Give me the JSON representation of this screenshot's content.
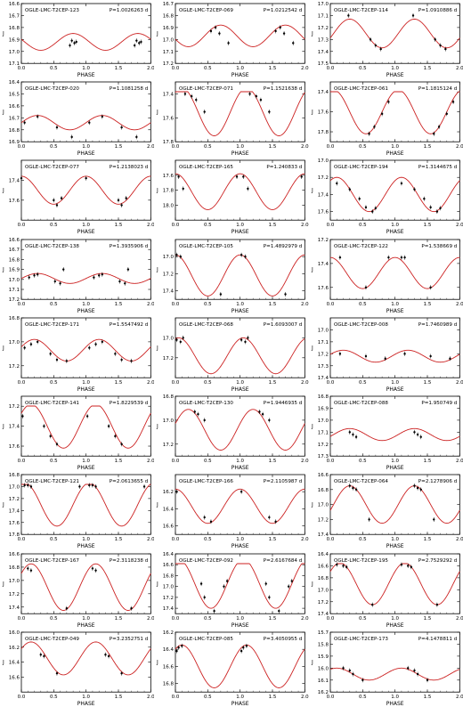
{
  "figure": {
    "xlabel": "PHASE",
    "ylabel": "J",
    "curve_color": "#cc2222",
    "point_color": "#000000"
  },
  "chart_data": [
    {
      "type": "line",
      "title": "OGLE-LMC-T2CEP-123",
      "period": "P=1.0026263 d",
      "ylim": [
        17.1,
        16.6
      ],
      "yticks": [
        "16.6",
        "16.7",
        "16.8",
        "16.9",
        "17.0",
        "17.1"
      ],
      "xticks": [
        "0.0",
        "0.5",
        "1.0",
        "1.5",
        "2.0"
      ],
      "x": [
        0.75,
        0.78,
        0.82,
        0.85,
        1.75,
        1.78,
        1.82,
        1.85
      ],
      "y": [
        16.95,
        16.91,
        16.93,
        16.92,
        16.95,
        16.91,
        16.93,
        16.92
      ],
      "amp": 0.07,
      "mean": 16.92,
      "phase0": 0.8
    },
    {
      "type": "line",
      "title": "OGLE-LMC-T2CEP-069",
      "period": "P=1.0212542 d",
      "ylim": [
        17.2,
        16.7
      ],
      "yticks": [
        "16.7",
        "16.8",
        "16.9",
        "17.0",
        "17.1",
        "17.2"
      ],
      "xticks": [
        "0.0",
        "0.5",
        "1.0",
        "1.5",
        "2.0"
      ],
      "x": [
        0.55,
        0.62,
        0.68,
        0.82,
        1.55,
        1.62,
        1.68,
        1.82
      ],
      "y": [
        16.93,
        16.9,
        16.95,
        17.03,
        16.93,
        16.9,
        16.95,
        17.03
      ],
      "amp": 0.09,
      "mean": 16.97,
      "phase0": 0.7
    },
    {
      "type": "line",
      "title": "OGLE-LMC-T2CEP-114",
      "period": "P=1.0910886 d",
      "ylim": [
        17.5,
        17.0
      ],
      "yticks": [
        "17.0",
        "17.1",
        "17.2",
        "17.3",
        "17.4",
        "17.5"
      ],
      "xticks": [
        "0.0",
        "0.5",
        "1.0",
        "1.5",
        "2.0"
      ],
      "x": [
        0.28,
        0.62,
        0.7,
        0.78,
        1.28,
        1.62,
        1.7,
        1.78
      ],
      "y": [
        17.1,
        17.3,
        17.35,
        17.38,
        17.1,
        17.3,
        17.35,
        17.38
      ],
      "amp": 0.12,
      "mean": 17.25,
      "phase0": 0.3
    },
    {
      "type": "line",
      "title": "OGLE-LMC-T2CEP-020",
      "period": "P=1.1081258 d",
      "ylim": [
        16.9,
        16.4
      ],
      "yticks": [
        "16.4",
        "16.5",
        "16.6",
        "16.7",
        "16.8",
        "16.9"
      ],
      "xticks": [
        "0.0",
        "0.5",
        "1.0",
        "1.5",
        "2.0"
      ],
      "x": [
        0.05,
        0.25,
        0.55,
        0.78,
        1.05,
        1.25,
        1.55,
        1.78
      ],
      "y": [
        16.74,
        16.69,
        16.78,
        16.86,
        16.74,
        16.69,
        16.78,
        16.86
      ],
      "amp": 0.06,
      "mean": 16.74,
      "phase0": 0.25
    },
    {
      "type": "line",
      "title": "OGLE-LMC-T2CEP-071",
      "period": "P=1.1521638 d",
      "ylim": [
        17.8,
        17.3
      ],
      "yticks": [
        "17.4",
        "17.6",
        "17.8"
      ],
      "xticks": [
        "0.0",
        "0.5",
        "1.0",
        "1.5",
        "2.0"
      ],
      "x": [
        0.15,
        0.25,
        0.32,
        0.45,
        1.15,
        1.25,
        1.32,
        1.45
      ],
      "y": [
        17.4,
        17.42,
        17.45,
        17.55,
        17.4,
        17.42,
        17.45,
        17.55
      ],
      "amp": 0.2,
      "mean": 17.55,
      "phase0": 0.1
    },
    {
      "type": "line",
      "title": "OGLE-LMC-T2CEP-061",
      "period": "P=1.1815124 d",
      "ylim": [
        17.9,
        17.3
      ],
      "yticks": [
        "17.4",
        "17.6",
        "17.8"
      ],
      "xticks": [
        "0.0",
        "0.5",
        "1.0",
        "1.5",
        "2.0"
      ],
      "x": [
        0.6,
        0.68,
        0.8,
        0.9,
        1.6,
        1.68,
        1.8,
        1.9
      ],
      "y": [
        17.82,
        17.75,
        17.62,
        17.5,
        17.82,
        17.75,
        17.62,
        17.5
      ],
      "amp": 0.22,
      "mean": 17.6,
      "phase0": 0.05
    },
    {
      "type": "line",
      "title": "OGLE-LMC-T2CEP-077",
      "period": "P=1.2138023 d",
      "ylim": [
        17.8,
        17.2
      ],
      "yticks": [
        "17.4",
        "17.6"
      ],
      "xticks": [
        "0.0",
        "0.5",
        "1.0",
        "1.5",
        "2.0"
      ],
      "x": [
        0.0,
        0.5,
        0.55,
        0.62,
        1.0,
        1.5,
        1.55,
        1.62
      ],
      "y": [
        17.38,
        17.6,
        17.65,
        17.58,
        17.38,
        17.6,
        17.65,
        17.58
      ],
      "amp": 0.14,
      "mean": 17.5,
      "phase0": 0.0
    },
    {
      "type": "line",
      "title": "OGLE-LMC-T2CEP-165",
      "period": "P=1.240833 d",
      "ylim": [
        18.2,
        17.4
      ],
      "yticks": [
        "17.6",
        "17.8",
        "18.0"
      ],
      "xticks": [
        "0.0",
        "0.5",
        "1.0",
        "1.5",
        "2.0"
      ],
      "x": [
        0.05,
        0.12,
        0.95,
        1.05,
        1.12,
        1.95
      ],
      "y": [
        17.62,
        17.78,
        17.62,
        17.62,
        17.78,
        17.62
      ],
      "amp": 0.24,
      "mean": 17.82,
      "phase0": 0.0
    },
    {
      "type": "line",
      "title": "OGLE-LMC-T2CEP-194",
      "period": "P=1.3144675 d",
      "ylim": [
        17.7,
        17.0
      ],
      "yticks": [
        "17.0",
        "17.2",
        "17.4",
        "17.6"
      ],
      "xticks": [
        "0.0",
        "0.5",
        "1.0",
        "1.5",
        "2.0"
      ],
      "x": [
        0.1,
        0.3,
        0.45,
        0.55,
        0.65,
        0.7,
        1.1,
        1.3,
        1.45,
        1.55,
        1.65,
        1.7
      ],
      "y": [
        17.27,
        17.34,
        17.45,
        17.55,
        17.6,
        17.56,
        17.27,
        17.34,
        17.45,
        17.55,
        17.6,
        17.56
      ],
      "amp": 0.2,
      "mean": 17.4,
      "phase0": 0.1
    },
    {
      "type": "line",
      "title": "OGLE-LMC-T2CEP-138",
      "period": "P=1.3935906 d",
      "ylim": [
        17.2,
        16.6
      ],
      "yticks": [
        "16.6",
        "16.7",
        "16.8",
        "16.9",
        "17.0",
        "17.1",
        "17.2"
      ],
      "xticks": [
        "0.0",
        "0.5",
        "1.0",
        "1.5",
        "2.0"
      ],
      "x": [
        0.12,
        0.2,
        0.25,
        0.52,
        0.6,
        0.65,
        1.12,
        1.2,
        1.25,
        1.52,
        1.6,
        1.65
      ],
      "y": [
        16.98,
        16.96,
        16.95,
        17.02,
        17.04,
        16.9,
        16.98,
        16.96,
        16.95,
        17.02,
        17.04,
        16.9
      ],
      "amp": 0.05,
      "mean": 16.99,
      "phase0": 0.25
    },
    {
      "type": "line",
      "title": "OGLE-LMC-T2CEP-105",
      "period": "P=1.4892979 d",
      "ylim": [
        17.5,
        16.8
      ],
      "yticks": [
        "17.0",
        "17.2",
        "17.4"
      ],
      "xticks": [
        "0.0",
        "0.5",
        "1.0",
        "1.5",
        "2.0"
      ],
      "x": [
        0.02,
        0.08,
        0.7,
        1.02,
        1.08,
        1.7
      ],
      "y": [
        16.98,
        17.0,
        17.44,
        16.98,
        17.0,
        17.44
      ],
      "amp": 0.24,
      "mean": 17.22,
      "phase0": 0.0
    },
    {
      "type": "line",
      "title": "OGLE-LMC-T2CEP-122",
      "period": "P=1.538669 d",
      "ylim": [
        17.7,
        17.2
      ],
      "yticks": [
        "17.2",
        "17.4",
        "17.6"
      ],
      "xticks": [
        "0.0",
        "0.5",
        "1.0",
        "1.5",
        "2.0"
      ],
      "x": [
        0.15,
        0.55,
        0.9,
        1.1,
        1.15,
        1.55
      ],
      "y": [
        17.35,
        17.6,
        17.35,
        17.35,
        17.35,
        17.6
      ],
      "amp": 0.13,
      "mean": 17.48,
      "phase0": 0.0
    },
    {
      "type": "line",
      "title": "OGLE-LMC-T2CEP-171",
      "period": "P=1.5547492 d",
      "ylim": [
        17.3,
        16.8
      ],
      "yticks": [
        "16.8",
        "17.0",
        "17.2"
      ],
      "xticks": [
        "0.0",
        "0.5",
        "1.0",
        "1.5",
        "2.0"
      ],
      "x": [
        0.05,
        0.15,
        0.25,
        0.45,
        0.55,
        0.7,
        1.05,
        1.15,
        1.25,
        1.45,
        1.55,
        1.7
      ],
      "y": [
        17.05,
        17.02,
        17.0,
        17.1,
        17.15,
        17.16,
        17.05,
        17.02,
        17.0,
        17.1,
        17.15,
        17.16
      ],
      "amp": 0.09,
      "mean": 17.07,
      "phase0": 0.2
    },
    {
      "type": "line",
      "title": "OGLE-LMC-T2CEP-068",
      "period": "P=1.6093007 d",
      "ylim": [
        17.4,
        16.8
      ],
      "yticks": [
        "17.0",
        "17.2"
      ],
      "xticks": [
        "0.0",
        "0.5",
        "1.0",
        "1.5",
        "2.0"
      ],
      "x": [
        0.02,
        0.08,
        0.12,
        1.02,
        1.08,
        1.12
      ],
      "y": [
        17.02,
        17.04,
        17.0,
        17.02,
        17.04,
        17.0
      ],
      "amp": 0.18,
      "mean": 17.18,
      "phase0": 0.05
    },
    {
      "type": "line",
      "title": "OGLE-LMC-T2CEP-008",
      "period": "P=1.7460989 d",
      "ylim": [
        17.4,
        16.9
      ],
      "yticks": [
        "17.0",
        "17.1",
        "17.2",
        "17.3",
        "17.4"
      ],
      "xticks": [
        "0.0",
        "0.5",
        "1.0",
        "1.5",
        "2.0"
      ],
      "x": [
        0.15,
        0.55,
        0.85,
        1.15,
        1.55,
        1.85
      ],
      "y": [
        17.2,
        17.22,
        17.24,
        17.2,
        17.22,
        17.24
      ],
      "amp": 0.05,
      "mean": 17.22,
      "phase0": 0.2
    },
    {
      "type": "line",
      "title": "OGLE-LMC-T2CEP-141",
      "period": "P=1.8229539 d",
      "ylim": [
        17.7,
        17.1
      ],
      "yticks": [
        "17.2",
        "17.4",
        "17.6"
      ],
      "xticks": [
        "0.0",
        "0.5",
        "1.0",
        "1.5",
        "2.0"
      ],
      "x": [
        0.02,
        0.35,
        0.45,
        0.55,
        1.02,
        1.35,
        1.45,
        1.55
      ],
      "y": [
        17.3,
        17.4,
        17.5,
        17.58,
        17.3,
        17.4,
        17.5,
        17.58
      ],
      "amp": 0.22,
      "mean": 17.4,
      "phase0": 0.15
    },
    {
      "type": "line",
      "title": "OGLE-LMC-T2CEP-130",
      "period": "P=1.9446935 d",
      "ylim": [
        17.3,
        16.8
      ],
      "yticks": [
        "16.8",
        "17.0",
        "17.2"
      ],
      "xticks": [
        "0.0",
        "0.5",
        "1.0",
        "1.5",
        "2.0"
      ],
      "x": [
        0.3,
        0.35,
        0.45,
        1.3,
        1.35,
        1.45
      ],
      "y": [
        16.93,
        16.95,
        17.0,
        16.93,
        16.95,
        17.0
      ],
      "amp": 0.17,
      "mean": 17.08,
      "phase0": 0.2
    },
    {
      "type": "line",
      "title": "OGLE-LMC-T2CEP-088",
      "period": "P=1.950749 d",
      "ylim": [
        17.3,
        16.8
      ],
      "yticks": [
        "16.8",
        "16.9",
        "17.0",
        "17.1",
        "17.2",
        "17.3"
      ],
      "xticks": [
        "0.0",
        "0.5",
        "1.0",
        "1.5",
        "2.0"
      ],
      "x": [
        0.3,
        0.35,
        0.4,
        1.3,
        1.35,
        1.4
      ],
      "y": [
        17.1,
        17.12,
        17.14,
        17.1,
        17.12,
        17.14
      ],
      "amp": 0.05,
      "mean": 17.12,
      "phase0": 0.3
    },
    {
      "type": "line",
      "title": "OGLE-LMC-T2CEP-121",
      "period": "P=2.0613655 d",
      "ylim": [
        17.8,
        16.8
      ],
      "yticks": [
        "16.8",
        "17.0",
        "17.2",
        "17.4",
        "17.6",
        "17.8"
      ],
      "xticks": [
        "0.0",
        "0.5",
        "1.0",
        "1.5",
        "2.0"
      ],
      "x": [
        0.05,
        0.1,
        0.15,
        0.9,
        1.05,
        1.1,
        1.15,
        1.9
      ],
      "y": [
        16.95,
        16.97,
        17.0,
        17.0,
        16.95,
        16.97,
        17.0,
        17.0
      ],
      "amp": 0.36,
      "mean": 17.3,
      "phase0": 0.05
    },
    {
      "type": "line",
      "title": "OGLE-LMC-T2CEP-166",
      "period": "P=2.1105987 d",
      "ylim": [
        16.7,
        16.0
      ],
      "yticks": [
        "16.2",
        "16.4",
        "16.6"
      ],
      "xticks": [
        "0.0",
        "0.5",
        "1.0",
        "1.5",
        "2.0"
      ],
      "x": [
        0.02,
        0.45,
        0.55,
        1.02,
        1.45,
        1.55
      ],
      "y": [
        16.2,
        16.5,
        16.55,
        16.2,
        16.5,
        16.55
      ],
      "amp": 0.2,
      "mean": 16.37,
      "phase0": 0.0
    },
    {
      "type": "line",
      "title": "OGLE-LMC-T2CEP-064",
      "period": "P=2.1278906 d",
      "ylim": [
        17.4,
        16.6
      ],
      "yticks": [
        "16.6",
        "16.8",
        "17.0",
        "17.2",
        "17.4"
      ],
      "xticks": [
        "0.0",
        "0.5",
        "1.0",
        "1.5",
        "2.0"
      ],
      "x": [
        0.3,
        0.35,
        0.4,
        0.6,
        1.3,
        1.35,
        1.4,
        1.6
      ],
      "y": [
        16.75,
        16.78,
        16.8,
        17.2,
        16.75,
        16.78,
        16.8,
        17.2
      ],
      "amp": 0.25,
      "mean": 17.0,
      "phase0": 0.3
    },
    {
      "type": "line",
      "title": "OGLE-LMC-T2CEP-167",
      "period": "P=2.3118238 d",
      "ylim": [
        17.5,
        16.6
      ],
      "yticks": [
        "16.6",
        "16.8",
        "17.0",
        "17.2",
        "17.4"
      ],
      "xticks": [
        "0.0",
        "0.5",
        "1.0",
        "1.5",
        "2.0"
      ],
      "x": [
        0.1,
        0.15,
        0.7,
        1.1,
        1.15,
        1.7
      ],
      "y": [
        16.82,
        16.85,
        17.42,
        16.82,
        16.85,
        17.42
      ],
      "amp": 0.35,
      "mean": 17.1,
      "phase0": 0.15
    },
    {
      "type": "line",
      "title": "OGLE-LMC-T2CEP-092",
      "period": "P=2.6167684 d",
      "ylim": [
        17.5,
        16.4
      ],
      "yticks": [
        "16.4",
        "16.6",
        "16.8",
        "17.0",
        "17.2",
        "17.4"
      ],
      "xticks": [
        "0.0",
        "0.5",
        "1.0",
        "1.5",
        "2.0"
      ],
      "x": [
        0.4,
        0.45,
        0.6,
        0.75,
        0.8,
        1.4,
        1.45,
        1.6,
        1.75,
        1.8
      ],
      "y": [
        16.95,
        17.2,
        17.45,
        17.0,
        16.9,
        16.95,
        17.2,
        17.45,
        17.0,
        16.9
      ],
      "amp": 0.45,
      "mean": 16.95,
      "phase0": 0.05
    },
    {
      "type": "line",
      "title": "OGLE-LMC-T2CEP-195",
      "period": "P=2.7529292 d",
      "ylim": [
        17.4,
        16.4
      ],
      "yticks": [
        "16.4",
        "16.6",
        "16.8",
        "17.0",
        "17.2",
        "17.4"
      ],
      "xticks": [
        "0.0",
        "0.5",
        "1.0",
        "1.5",
        "2.0"
      ],
      "x": [
        0.1,
        0.2,
        0.25,
        0.65,
        1.1,
        1.2,
        1.25,
        1.65
      ],
      "y": [
        16.58,
        16.6,
        16.62,
        17.25,
        16.58,
        16.6,
        16.62,
        17.25
      ],
      "amp": 0.35,
      "mean": 16.9,
      "phase0": 0.15
    },
    {
      "type": "line",
      "title": "OGLE-LMC-T2CEP-049",
      "period": "P=3.2352751 d",
      "ylim": [
        16.8,
        16.0
      ],
      "yticks": [
        "16.0",
        "16.2",
        "16.4",
        "16.6"
      ],
      "xticks": [
        "0.0",
        "0.5",
        "1.0",
        "1.5",
        "2.0"
      ],
      "x": [
        0.3,
        0.35,
        0.55,
        1.3,
        1.35,
        1.55
      ],
      "y": [
        16.3,
        16.32,
        16.55,
        16.3,
        16.32,
        16.55
      ],
      "amp": 0.22,
      "mean": 16.35,
      "phase0": 0.15
    },
    {
      "type": "line",
      "title": "OGLE-LMC-T2CEP-085",
      "period": "P=3.4050955 d",
      "ylim": [
        16.9,
        16.2
      ],
      "yticks": [
        "16.2",
        "16.4",
        "16.6",
        "16.8"
      ],
      "xticks": [
        "0.0",
        "0.5",
        "1.0",
        "1.5",
        "2.0"
      ],
      "x": [
        0.02,
        0.05,
        0.1,
        1.02,
        1.05,
        1.1
      ],
      "y": [
        16.42,
        16.38,
        16.36,
        16.42,
        16.38,
        16.36
      ],
      "amp": 0.25,
      "mean": 16.6,
      "phase0": 0.1
    },
    {
      "type": "line",
      "title": "OGLE-LMC-T2CEP-173",
      "period": "P=4.1478811 d",
      "ylim": [
        16.2,
        15.7
      ],
      "yticks": [
        "15.7",
        "15.8",
        "15.9",
        "16.0",
        "16.1",
        "16.2"
      ],
      "xticks": [
        "0.0",
        "0.5",
        "1.0",
        "1.5",
        "2.0"
      ],
      "x": [
        0.2,
        0.3,
        0.35,
        0.5,
        1.2,
        1.3,
        1.35,
        1.5
      ],
      "y": [
        16.0,
        16.02,
        16.05,
        16.1,
        16.0,
        16.02,
        16.05,
        16.1
      ],
      "amp": 0.05,
      "mean": 16.05,
      "phase0": 0.1
    }
  ]
}
